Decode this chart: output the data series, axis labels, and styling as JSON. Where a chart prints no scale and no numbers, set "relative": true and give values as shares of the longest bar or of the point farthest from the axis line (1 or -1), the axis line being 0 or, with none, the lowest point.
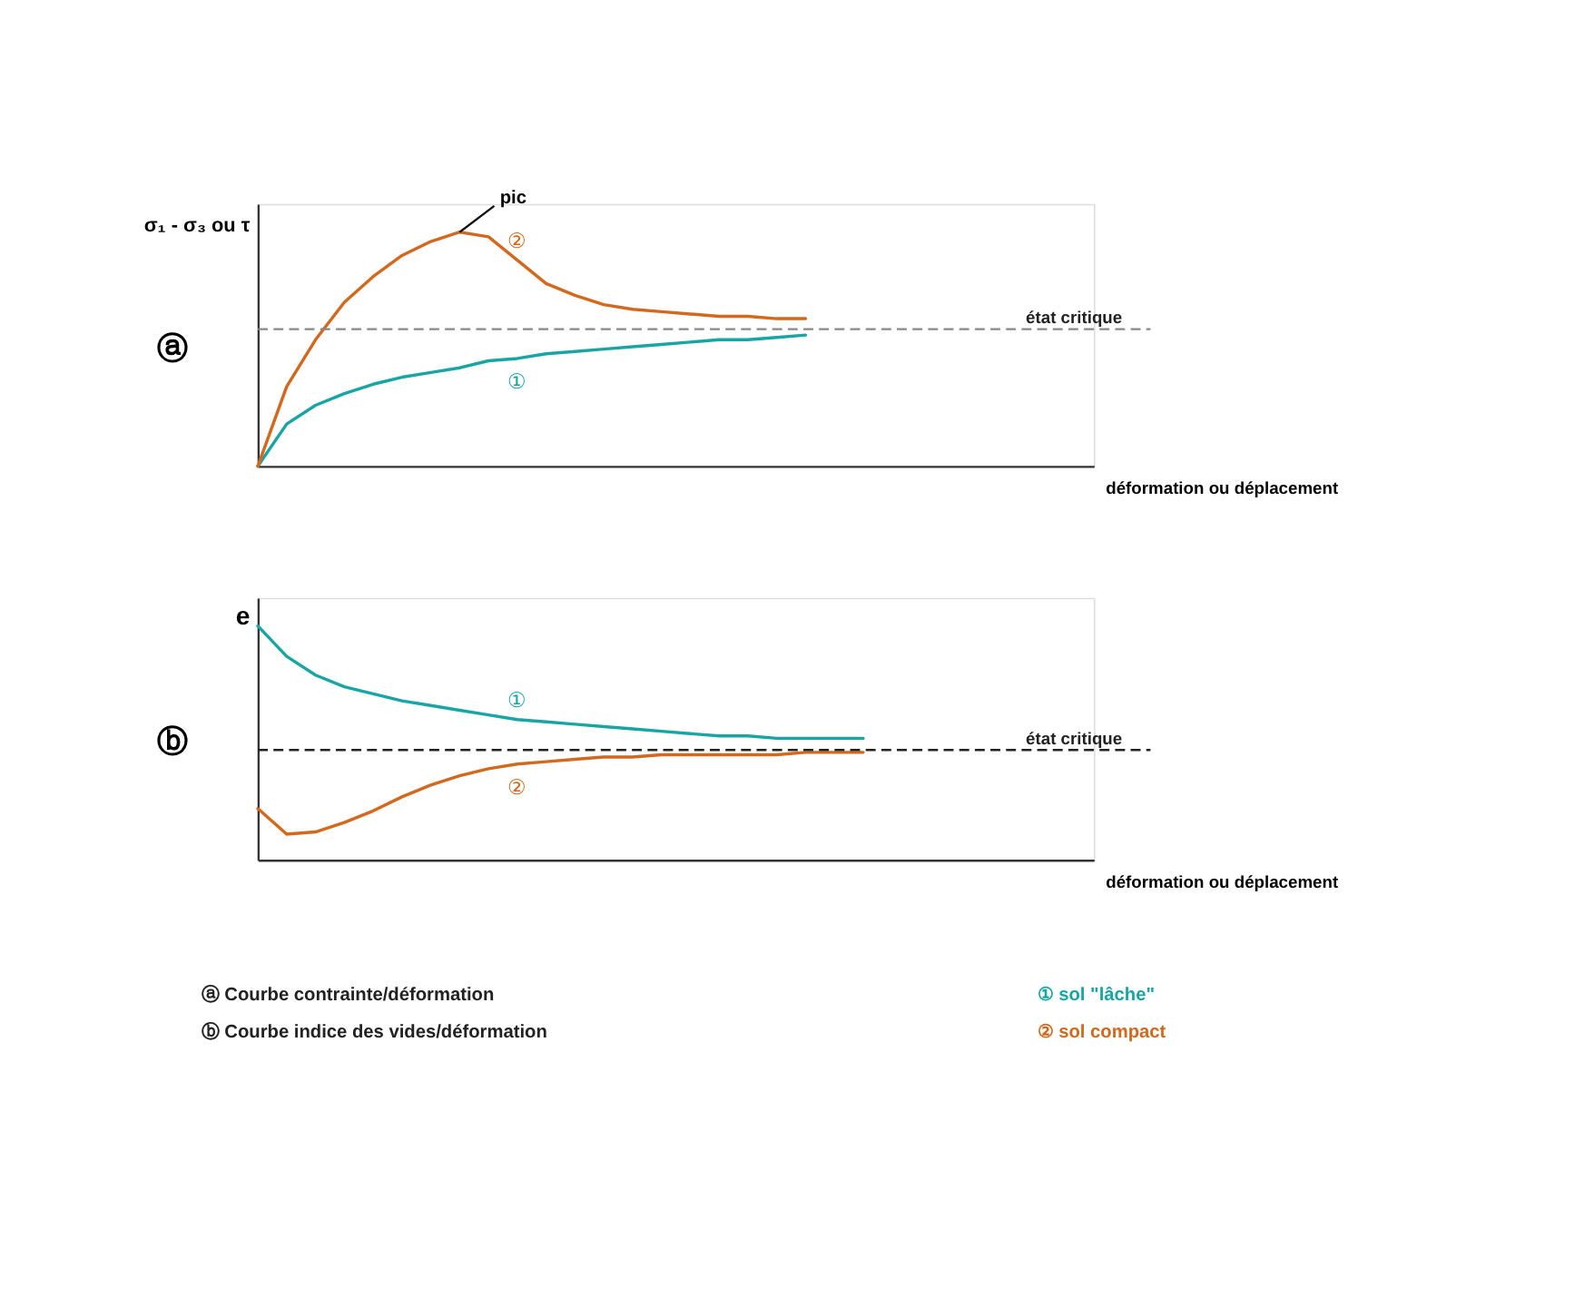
{
  "chart_data": [
    {
      "type": "line",
      "relative": true,
      "ylabel": "σ₁ - σ₃ ou τ",
      "xlabel": "déformation ou déplacement",
      "legend": false,
      "grid": false,
      "categories": [
        null,
        null,
        null,
        null,
        null,
        null,
        null,
        null,
        null,
        null,
        null,
        null,
        null,
        null,
        null,
        null,
        null,
        null,
        null,
        null,
        null,
        null,
        null,
        null,
        null,
        null,
        null,
        null,
        null,
        null
      ],
      "series": [
        {
          "name": "①",
          "color": "#1aa5a5",
          "values": [
            0,
            0.18,
            0.26,
            0.31,
            0.35,
            0.38,
            0.4,
            0.42,
            0.45,
            0.46,
            0.48,
            0.49,
            0.5,
            0.51,
            0.52,
            0.53,
            0.54,
            0.54,
            0.55,
            0.56,
            null,
            null,
            null,
            null,
            null,
            null,
            null,
            null,
            null,
            null
          ]
        },
        {
          "name": "②",
          "color": "#d2691e",
          "values": [
            0,
            0.34,
            0.54,
            0.7,
            0.81,
            0.9,
            0.96,
            1.0,
            0.98,
            0.88,
            0.78,
            0.73,
            0.69,
            0.67,
            0.66,
            0.65,
            0.64,
            0.64,
            0.63,
            0.63,
            null,
            null,
            null,
            null,
            null,
            null,
            null,
            null,
            null,
            null
          ]
        }
      ],
      "ref_lines": [
        {
          "axis": "y",
          "value": 0.585,
          "label": "état critique",
          "color": "#888888",
          "line_style": "dashed"
        }
      ],
      "annotations": [
        "ⓐ",
        "pic"
      ]
    },
    {
      "type": "line",
      "relative": true,
      "ylabel": "e",
      "xlabel": "déformation ou déplacement",
      "legend": false,
      "grid": false,
      "categories": [
        null,
        null,
        null,
        null,
        null,
        null,
        null,
        null,
        null,
        null,
        null,
        null,
        null,
        null,
        null,
        null,
        null,
        null,
        null,
        null,
        null,
        null,
        null,
        null,
        null,
        null,
        null,
        null,
        null,
        null
      ],
      "series": [
        {
          "name": "①",
          "color": "#1aa5a5",
          "values": [
            1.0,
            0.87,
            0.79,
            0.74,
            0.71,
            0.68,
            0.66,
            0.64,
            0.62,
            0.6,
            0.59,
            0.58,
            0.57,
            0.56,
            0.55,
            0.54,
            0.53,
            0.53,
            0.52,
            0.52,
            0.52,
            0.52,
            null,
            null,
            null,
            null,
            null,
            null,
            null,
            null
          ]
        },
        {
          "name": "②",
          "color": "#d2691e",
          "values": [
            0.22,
            0.11,
            0.12,
            0.16,
            0.21,
            0.27,
            0.32,
            0.36,
            0.39,
            0.41,
            0.42,
            0.43,
            0.44,
            0.44,
            0.45,
            0.45,
            0.45,
            0.45,
            0.45,
            0.46,
            0.46,
            0.46,
            null,
            null,
            null,
            null,
            null,
            null,
            null,
            null
          ]
        }
      ],
      "ref_lines": [
        {
          "axis": "y",
          "value": 0.47,
          "label": "état critique",
          "color": "#222222",
          "line_style": "dashed"
        }
      ],
      "annotations": [
        "ⓑ",
        "ⓐ Courbe contrainte/déformation",
        "ⓑ Courbe indice des vides/déformation",
        "① sol \"lâche\"",
        "② sol compact"
      ]
    }
  ]
}
